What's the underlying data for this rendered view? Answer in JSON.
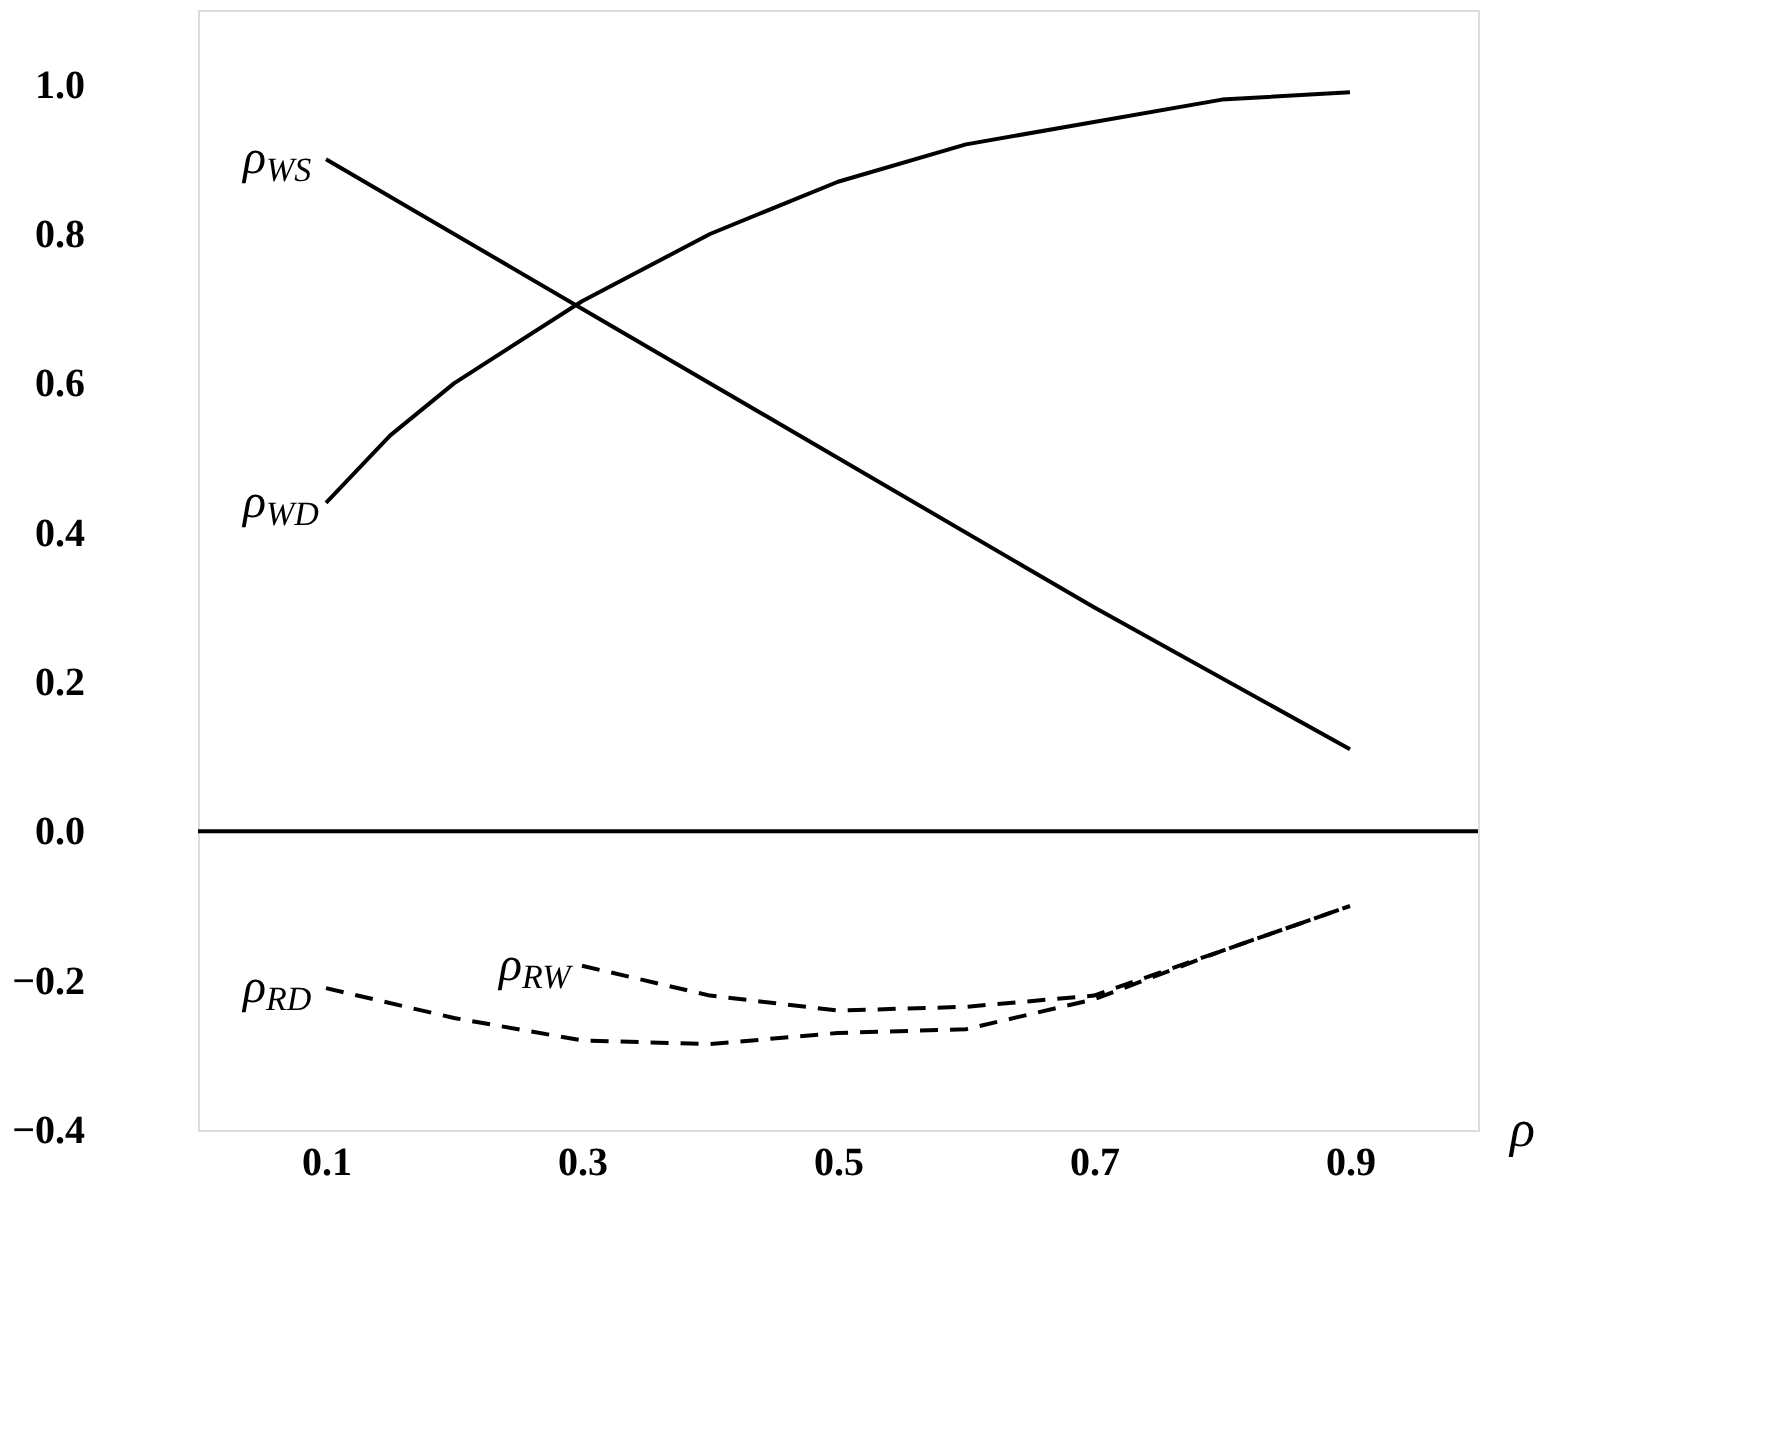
{
  "chart_data": {
    "type": "line",
    "xlabel": "ρ",
    "xlim": [
      0,
      1.0
    ],
    "xticks": [
      0.1,
      0.3,
      0.5,
      0.7,
      0.9
    ],
    "ylim": [
      -0.4,
      1.1
    ],
    "yticks": [
      {
        "value": -0.4,
        "label": "−0.4"
      },
      {
        "value": -0.2,
        "label": "−0.2"
      },
      {
        "value": 0,
        "label": "0.0"
      },
      {
        "value": 0.2,
        "label": "0.2"
      },
      {
        "value": 0.4,
        "label": "0.4"
      },
      {
        "value": 0.6,
        "label": "0.6"
      },
      {
        "value": 0.8,
        "label": "0.8"
      },
      {
        "value": 1.0,
        "label": "1.0"
      }
    ],
    "grid": false,
    "marker": "none",
    "ref_lines": [
      {
        "axis": "y",
        "value": 0,
        "color": "#000000",
        "line_style": "solid"
      }
    ],
    "series": [
      {
        "name": "ρ$_{WS}$",
        "color": "#000000",
        "line_style": "solid",
        "x": [
          0.1,
          0.3,
          0.5,
          0.7,
          0.9
        ],
        "values": [
          0.9,
          0.7,
          0.5,
          0.3,
          0.11
        ]
      },
      {
        "name": "ρ$_{WD}$",
        "color": "#000000",
        "line_style": "solid",
        "x": [
          0.1,
          0.15,
          0.2,
          0.3,
          0.4,
          0.5,
          0.6,
          0.7,
          0.8,
          0.9
        ],
        "values": [
          0.44,
          0.53,
          0.6,
          0.71,
          0.8,
          0.87,
          0.92,
          0.95,
          0.98,
          0.99
        ]
      },
      {
        "name": "ρ$_{RD}$",
        "color": "#000000",
        "line_style": "dashed",
        "x": [
          0.1,
          0.2,
          0.3,
          0.4,
          0.5,
          0.6,
          0.7,
          0.8,
          0.9
        ],
        "values": [
          -0.21,
          -0.25,
          -0.28,
          -0.285,
          -0.27,
          -0.265,
          -0.225,
          -0.16,
          -0.1
        ]
      },
      {
        "name": "ρ$_{RW}$",
        "color": "#000000",
        "line_style": "dashed",
        "x": [
          0.3,
          0.4,
          0.5,
          0.6,
          0.7,
          0.8,
          0.9
        ],
        "values": [
          -0.18,
          -0.22,
          -0.24,
          -0.235,
          -0.22,
          -0.16,
          -0.1
        ]
      }
    ]
  }
}
